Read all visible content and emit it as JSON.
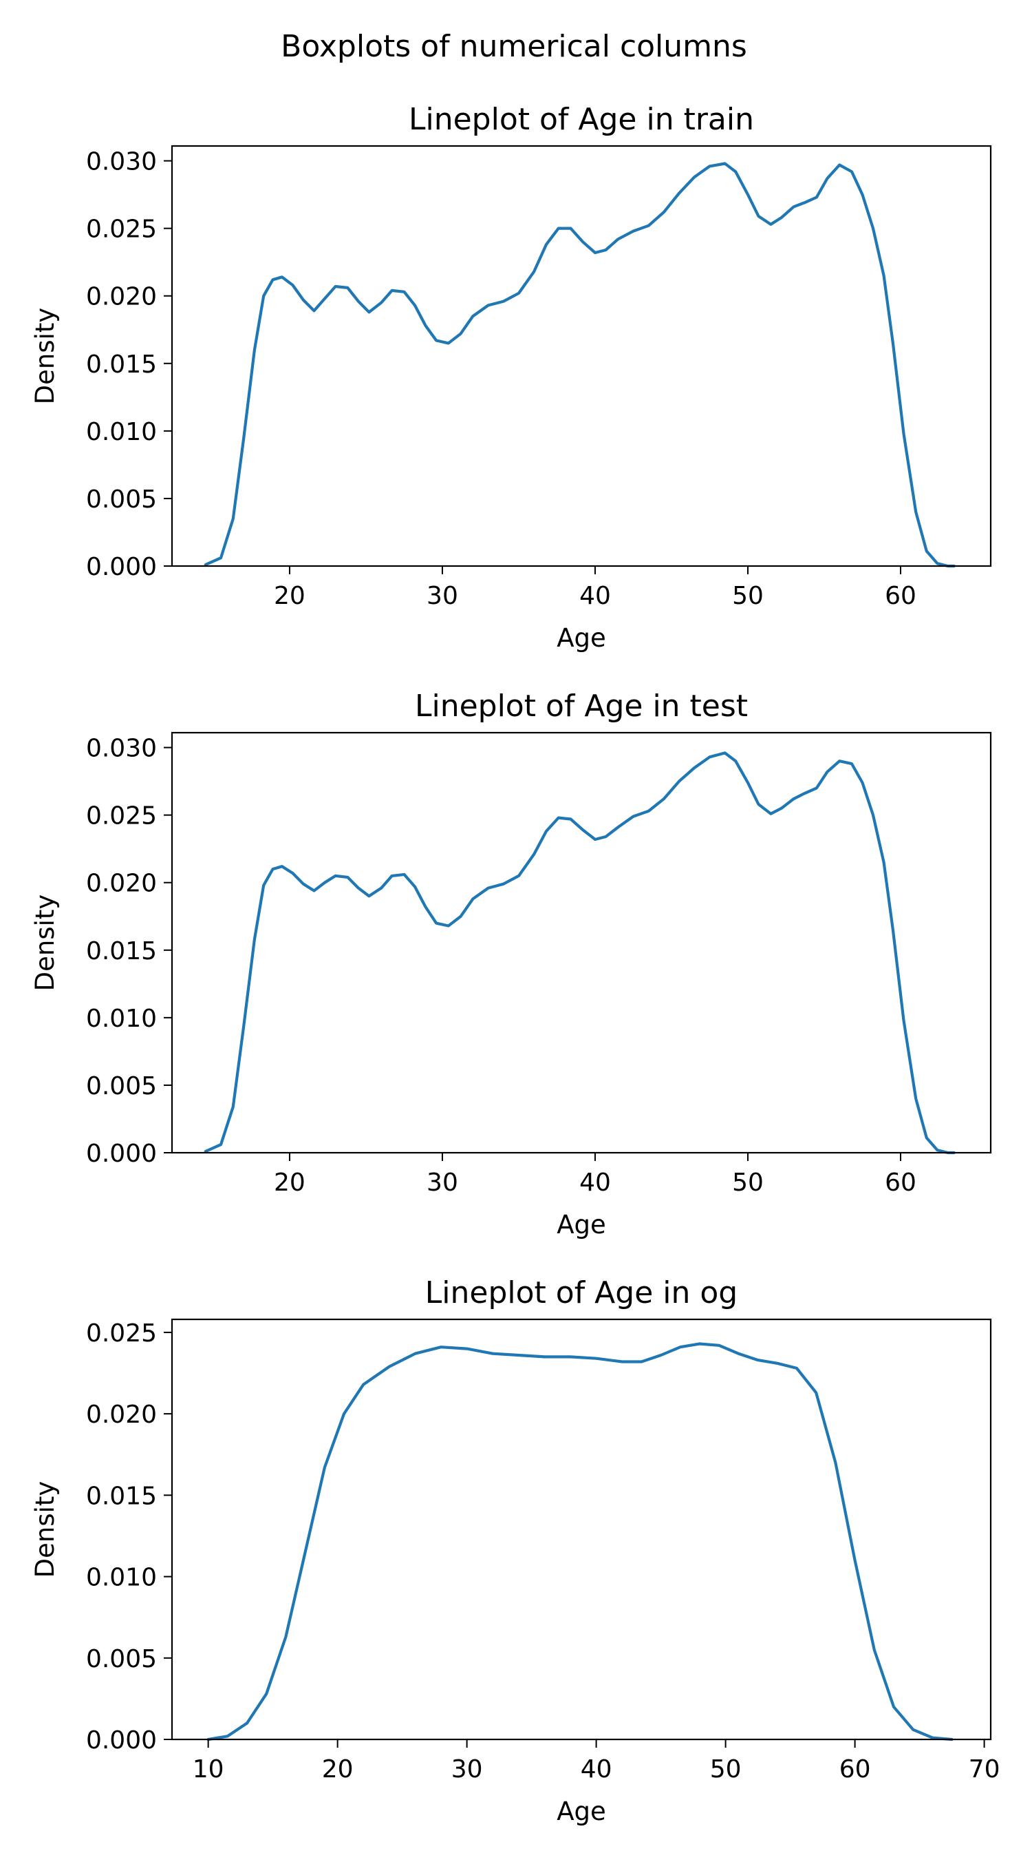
{
  "figure": {
    "suptitle": "Boxplots of numerical columns"
  },
  "chart_data": [
    {
      "type": "line",
      "title": "Lineplot of Age in train",
      "xlabel": "Age",
      "ylabel": "Density",
      "xlim": [
        12.3,
        65.9
      ],
      "ylim": [
        0,
        0.0311
      ],
      "xticks": [
        20,
        30,
        40,
        50,
        60
      ],
      "yticks": [
        0.0,
        0.005,
        0.01,
        0.015,
        0.02,
        0.025,
        0.03
      ],
      "ytick_decimals": 3,
      "grid": false,
      "color": "#1f77b4",
      "series": [
        {
          "x": [
            14.5,
            15.5,
            16.3,
            17.0,
            17.7,
            18.3,
            18.9,
            19.5,
            20.2,
            20.9,
            21.6,
            22.3,
            23.0,
            23.8,
            24.5,
            25.2,
            26.0,
            26.7,
            27.5,
            28.2,
            28.9,
            29.6,
            30.4,
            31.2,
            32.0,
            33.0,
            34.0,
            35.0,
            36.0,
            36.8,
            37.6,
            38.4,
            39.2,
            40.0,
            40.7,
            41.5,
            42.5,
            43.5,
            44.5,
            45.5,
            46.5,
            47.5,
            48.5,
            49.2,
            50.0,
            50.7,
            51.5,
            52.2,
            53.0,
            53.7,
            54.5,
            55.2,
            56.0,
            56.8,
            57.5,
            58.2,
            58.9,
            59.5,
            60.2,
            61.0,
            61.7,
            62.4,
            63.1,
            63.5
          ],
          "y": [
            0.0001,
            0.0006,
            0.0035,
            0.0095,
            0.016,
            0.02,
            0.0212,
            0.0214,
            0.0208,
            0.0197,
            0.0189,
            0.0198,
            0.0207,
            0.0206,
            0.0196,
            0.0188,
            0.0195,
            0.0204,
            0.0203,
            0.0193,
            0.0178,
            0.0167,
            0.0165,
            0.0172,
            0.0185,
            0.0193,
            0.0196,
            0.0202,
            0.0218,
            0.0238,
            0.025,
            0.025,
            0.024,
            0.0232,
            0.0234,
            0.0242,
            0.0248,
            0.0252,
            0.0262,
            0.0276,
            0.0288,
            0.0296,
            0.0298,
            0.0292,
            0.0275,
            0.0259,
            0.0253,
            0.0258,
            0.0266,
            0.0269,
            0.0273,
            0.0287,
            0.0297,
            0.0292,
            0.0275,
            0.025,
            0.0215,
            0.0165,
            0.0098,
            0.004,
            0.0011,
            0.0002,
            0.0,
            0.0
          ]
        }
      ]
    },
    {
      "type": "line",
      "title": "Lineplot of Age in test",
      "xlabel": "Age",
      "ylabel": "Density",
      "xlim": [
        12.3,
        65.9
      ],
      "ylim": [
        0,
        0.0311
      ],
      "xticks": [
        20,
        30,
        40,
        50,
        60
      ],
      "yticks": [
        0.0,
        0.005,
        0.01,
        0.015,
        0.02,
        0.025,
        0.03
      ],
      "ytick_decimals": 3,
      "grid": false,
      "color": "#1f77b4",
      "series": [
        {
          "x": [
            14.5,
            15.5,
            16.3,
            17.0,
            17.7,
            18.3,
            18.9,
            19.5,
            20.2,
            20.9,
            21.6,
            22.3,
            23.0,
            23.8,
            24.5,
            25.2,
            26.0,
            26.7,
            27.5,
            28.2,
            28.9,
            29.6,
            30.4,
            31.2,
            32.0,
            33.0,
            34.0,
            35.0,
            36.0,
            36.8,
            37.6,
            38.4,
            39.2,
            40.0,
            40.7,
            41.5,
            42.5,
            43.5,
            44.5,
            45.5,
            46.5,
            47.5,
            48.5,
            49.2,
            50.0,
            50.7,
            51.5,
            52.2,
            53.0,
            53.7,
            54.5,
            55.2,
            56.0,
            56.8,
            57.5,
            58.2,
            58.9,
            59.5,
            60.2,
            61.0,
            61.7,
            62.4,
            63.1,
            63.5
          ],
          "y": [
            0.0001,
            0.0006,
            0.0034,
            0.0094,
            0.0158,
            0.0198,
            0.021,
            0.0212,
            0.0207,
            0.0199,
            0.0194,
            0.02,
            0.0205,
            0.0204,
            0.0196,
            0.019,
            0.0196,
            0.0205,
            0.0206,
            0.0197,
            0.0182,
            0.017,
            0.0168,
            0.0175,
            0.0188,
            0.0196,
            0.0199,
            0.0205,
            0.0221,
            0.0238,
            0.0248,
            0.0247,
            0.0239,
            0.0232,
            0.0234,
            0.0241,
            0.0249,
            0.0253,
            0.0262,
            0.0275,
            0.0285,
            0.0293,
            0.0296,
            0.029,
            0.0274,
            0.0258,
            0.0251,
            0.0255,
            0.0262,
            0.0266,
            0.027,
            0.0282,
            0.029,
            0.0288,
            0.0274,
            0.025,
            0.0215,
            0.0165,
            0.0098,
            0.004,
            0.0011,
            0.0002,
            0.0,
            0.0
          ]
        }
      ]
    },
    {
      "type": "line",
      "title": "Lineplot of Age in og",
      "xlabel": "Age",
      "ylabel": "Density",
      "xlim": [
        7.2,
        70.5
      ],
      "ylim": [
        0,
        0.0258
      ],
      "xticks": [
        10,
        20,
        30,
        40,
        50,
        60,
        70
      ],
      "yticks": [
        0.0,
        0.005,
        0.01,
        0.015,
        0.02,
        0.025
      ],
      "ytick_decimals": 3,
      "grid": false,
      "color": "#1f77b4",
      "series": [
        {
          "x": [
            10.0,
            11.5,
            13.0,
            14.5,
            16.0,
            17.5,
            19.0,
            20.5,
            22.0,
            24.0,
            26.0,
            28.0,
            30.0,
            32.0,
            34.0,
            36.0,
            38.0,
            40.0,
            42.0,
            43.5,
            45.0,
            46.5,
            48.0,
            49.5,
            51.0,
            52.5,
            54.0,
            55.5,
            57.0,
            58.5,
            60.0,
            61.5,
            63.0,
            64.5,
            66.0,
            67.5
          ],
          "y": [
            0.0,
            0.0002,
            0.001,
            0.0028,
            0.0063,
            0.0115,
            0.0167,
            0.02,
            0.0218,
            0.0229,
            0.0237,
            0.0241,
            0.024,
            0.0237,
            0.0236,
            0.0235,
            0.0235,
            0.0234,
            0.0232,
            0.0232,
            0.0236,
            0.0241,
            0.0243,
            0.0242,
            0.0237,
            0.0233,
            0.0231,
            0.0228,
            0.0213,
            0.017,
            0.011,
            0.0055,
            0.002,
            0.0006,
            0.0001,
            0.0
          ]
        }
      ]
    }
  ]
}
